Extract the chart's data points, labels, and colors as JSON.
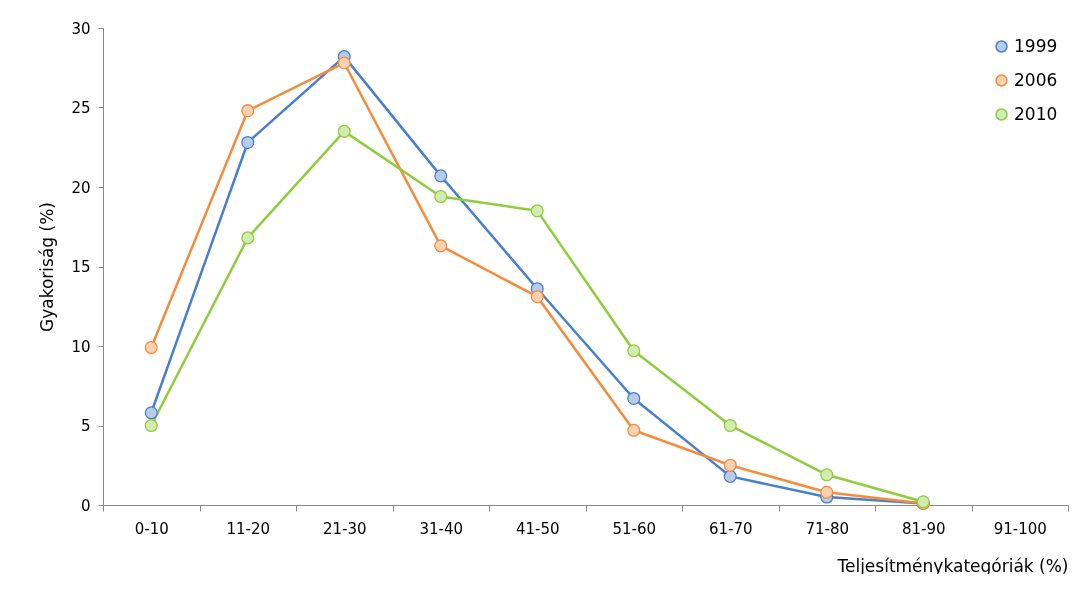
{
  "chart_data": {
    "type": "line",
    "xlabel": "Teljesítménykategóriák (%)",
    "ylabel": "Gyakoriság (%)",
    "categories": [
      "0-10",
      "11-20",
      "21-30",
      "31-40",
      "41-50",
      "51-60",
      "61-70",
      "71-80",
      "81-90",
      "91-100"
    ],
    "series": [
      {
        "name": "1999",
        "color": "#4a7fcb",
        "values": [
          5.8,
          22.8,
          28.2,
          20.7,
          13.6,
          6.7,
          1.8,
          0.5,
          0.1,
          null
        ]
      },
      {
        "name": "2006",
        "color": "#f58c3c",
        "values": [
          9.9,
          24.8,
          27.8,
          16.3,
          13.1,
          4.7,
          2.5,
          0.8,
          0.1,
          null
        ]
      },
      {
        "name": "2010",
        "color": "#8fcd3c",
        "values": [
          5.0,
          16.8,
          23.5,
          19.4,
          18.5,
          9.7,
          5.0,
          1.9,
          0.2,
          null
        ]
      }
    ],
    "ylim": [
      0,
      30
    ],
    "yticks": [
      0,
      5,
      10,
      15,
      20,
      25,
      30
    ],
    "grid": false,
    "legend": "top right",
    "marker": "circle",
    "line_style": "solid"
  }
}
